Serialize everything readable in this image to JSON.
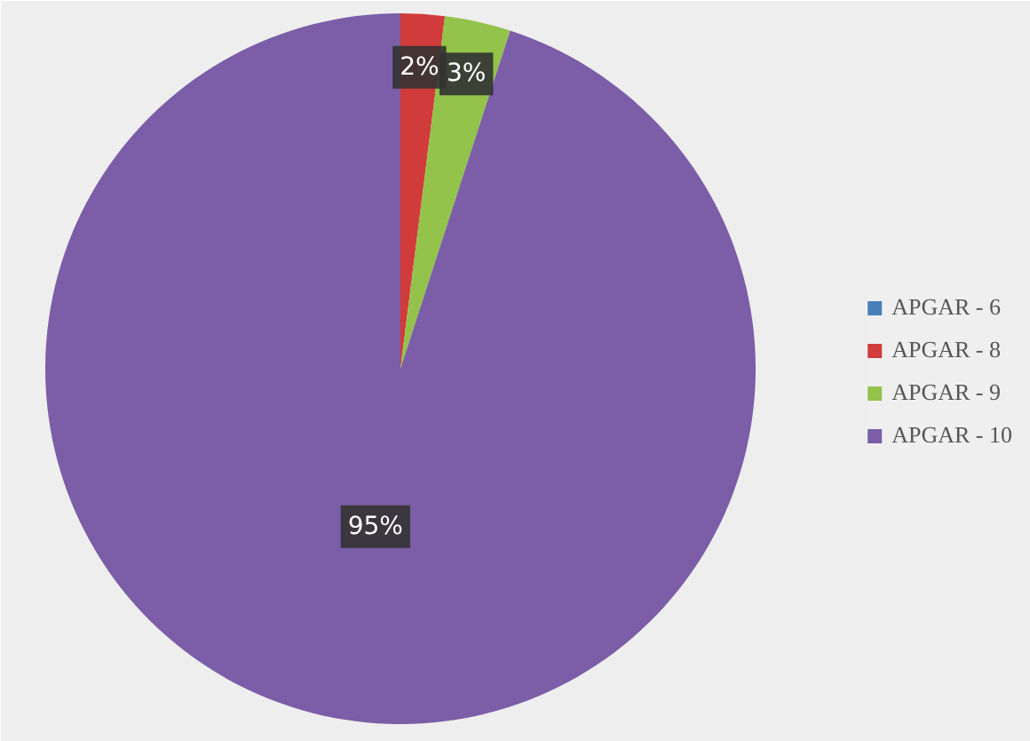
{
  "chart_data": {
    "type": "pie",
    "categories": [
      "APGAR - 6",
      "APGAR - 8",
      "APGAR - 9",
      "APGAR - 10"
    ],
    "values": [
      0,
      2,
      3,
      95
    ],
    "colors": [
      "#4a7ebb",
      "#d23b3b",
      "#93c34a",
      "#7b5ea7"
    ],
    "value_labels": [
      null,
      "2%",
      "3%",
      "95%"
    ],
    "legend": "right"
  }
}
